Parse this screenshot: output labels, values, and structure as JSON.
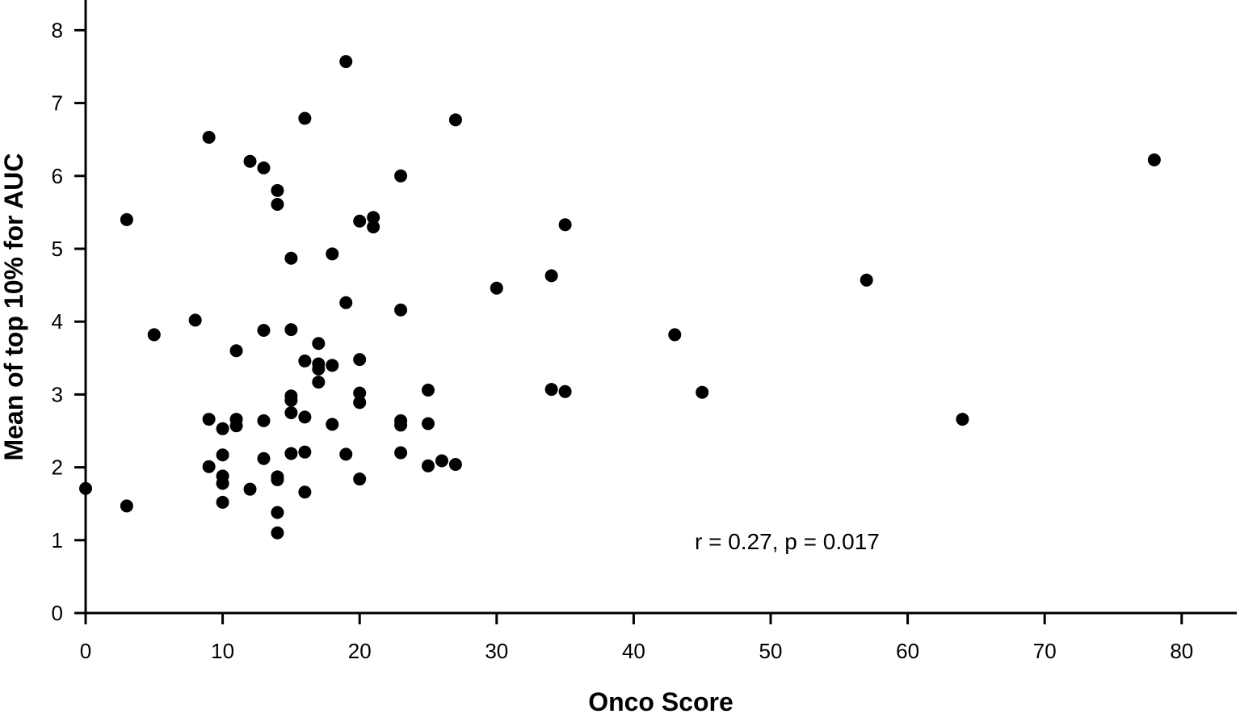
{
  "chart_data": {
    "type": "scatter",
    "title": "",
    "xlabel": "Onco Score",
    "ylabel": "Mean of top 10% for AUC",
    "xlim": [
      0,
      84
    ],
    "ylim": [
      0,
      8.4
    ],
    "xticks": [
      0,
      10,
      20,
      30,
      40,
      50,
      60,
      70,
      80
    ],
    "yticks": [
      0,
      1,
      2,
      3,
      4,
      5,
      6,
      7,
      8
    ],
    "grid": false,
    "legend": "none",
    "marker_color": "#000000",
    "annotation": "r = 0.27, p = 0.017",
    "points": [
      [
        0,
        1.71
      ],
      [
        3,
        5.4
      ],
      [
        3,
        1.47
      ],
      [
        5,
        3.82
      ],
      [
        8,
        4.02
      ],
      [
        9,
        6.53
      ],
      [
        9,
        2.66
      ],
      [
        9,
        2.01
      ],
      [
        10,
        2.53
      ],
      [
        10,
        2.17
      ],
      [
        10,
        1.88
      ],
      [
        10,
        1.78
      ],
      [
        10,
        1.52
      ],
      [
        11,
        3.6
      ],
      [
        11,
        2.66
      ],
      [
        11,
        2.57
      ],
      [
        12,
        6.2
      ],
      [
        12,
        1.7
      ],
      [
        13,
        6.11
      ],
      [
        13,
        3.88
      ],
      [
        13,
        2.64
      ],
      [
        13,
        2.12
      ],
      [
        14,
        5.8
      ],
      [
        14,
        5.61
      ],
      [
        14,
        1.87
      ],
      [
        14,
        1.83
      ],
      [
        14,
        1.38
      ],
      [
        14,
        1.1
      ],
      [
        15,
        4.87
      ],
      [
        15,
        3.89
      ],
      [
        15,
        2.98
      ],
      [
        15,
        2.92
      ],
      [
        15,
        2.75
      ],
      [
        15,
        2.19
      ],
      [
        16,
        6.79
      ],
      [
        16,
        3.46
      ],
      [
        16,
        2.69
      ],
      [
        16,
        2.21
      ],
      [
        16,
        1.66
      ],
      [
        17,
        3.7
      ],
      [
        17,
        3.42
      ],
      [
        17,
        3.35
      ],
      [
        17,
        3.17
      ],
      [
        18,
        4.93
      ],
      [
        18,
        3.4
      ],
      [
        18,
        2.59
      ],
      [
        19,
        7.57
      ],
      [
        19,
        4.26
      ],
      [
        19,
        2.18
      ],
      [
        20,
        5.38
      ],
      [
        20,
        3.48
      ],
      [
        20,
        3.02
      ],
      [
        20,
        2.89
      ],
      [
        20,
        1.84
      ],
      [
        21,
        5.43
      ],
      [
        21,
        5.3
      ],
      [
        23,
        6.0
      ],
      [
        23,
        4.16
      ],
      [
        23,
        2.64
      ],
      [
        23,
        2.58
      ],
      [
        23,
        2.2
      ],
      [
        25,
        3.06
      ],
      [
        25,
        2.6
      ],
      [
        25,
        2.02
      ],
      [
        26,
        2.09
      ],
      [
        27,
        6.77
      ],
      [
        27,
        2.04
      ],
      [
        30,
        4.46
      ],
      [
        34,
        4.63
      ],
      [
        34,
        3.07
      ],
      [
        35,
        5.33
      ],
      [
        35,
        3.04
      ],
      [
        43,
        3.82
      ],
      [
        45,
        3.03
      ],
      [
        57,
        4.57
      ],
      [
        64,
        2.66
      ],
      [
        78,
        6.22
      ]
    ]
  }
}
